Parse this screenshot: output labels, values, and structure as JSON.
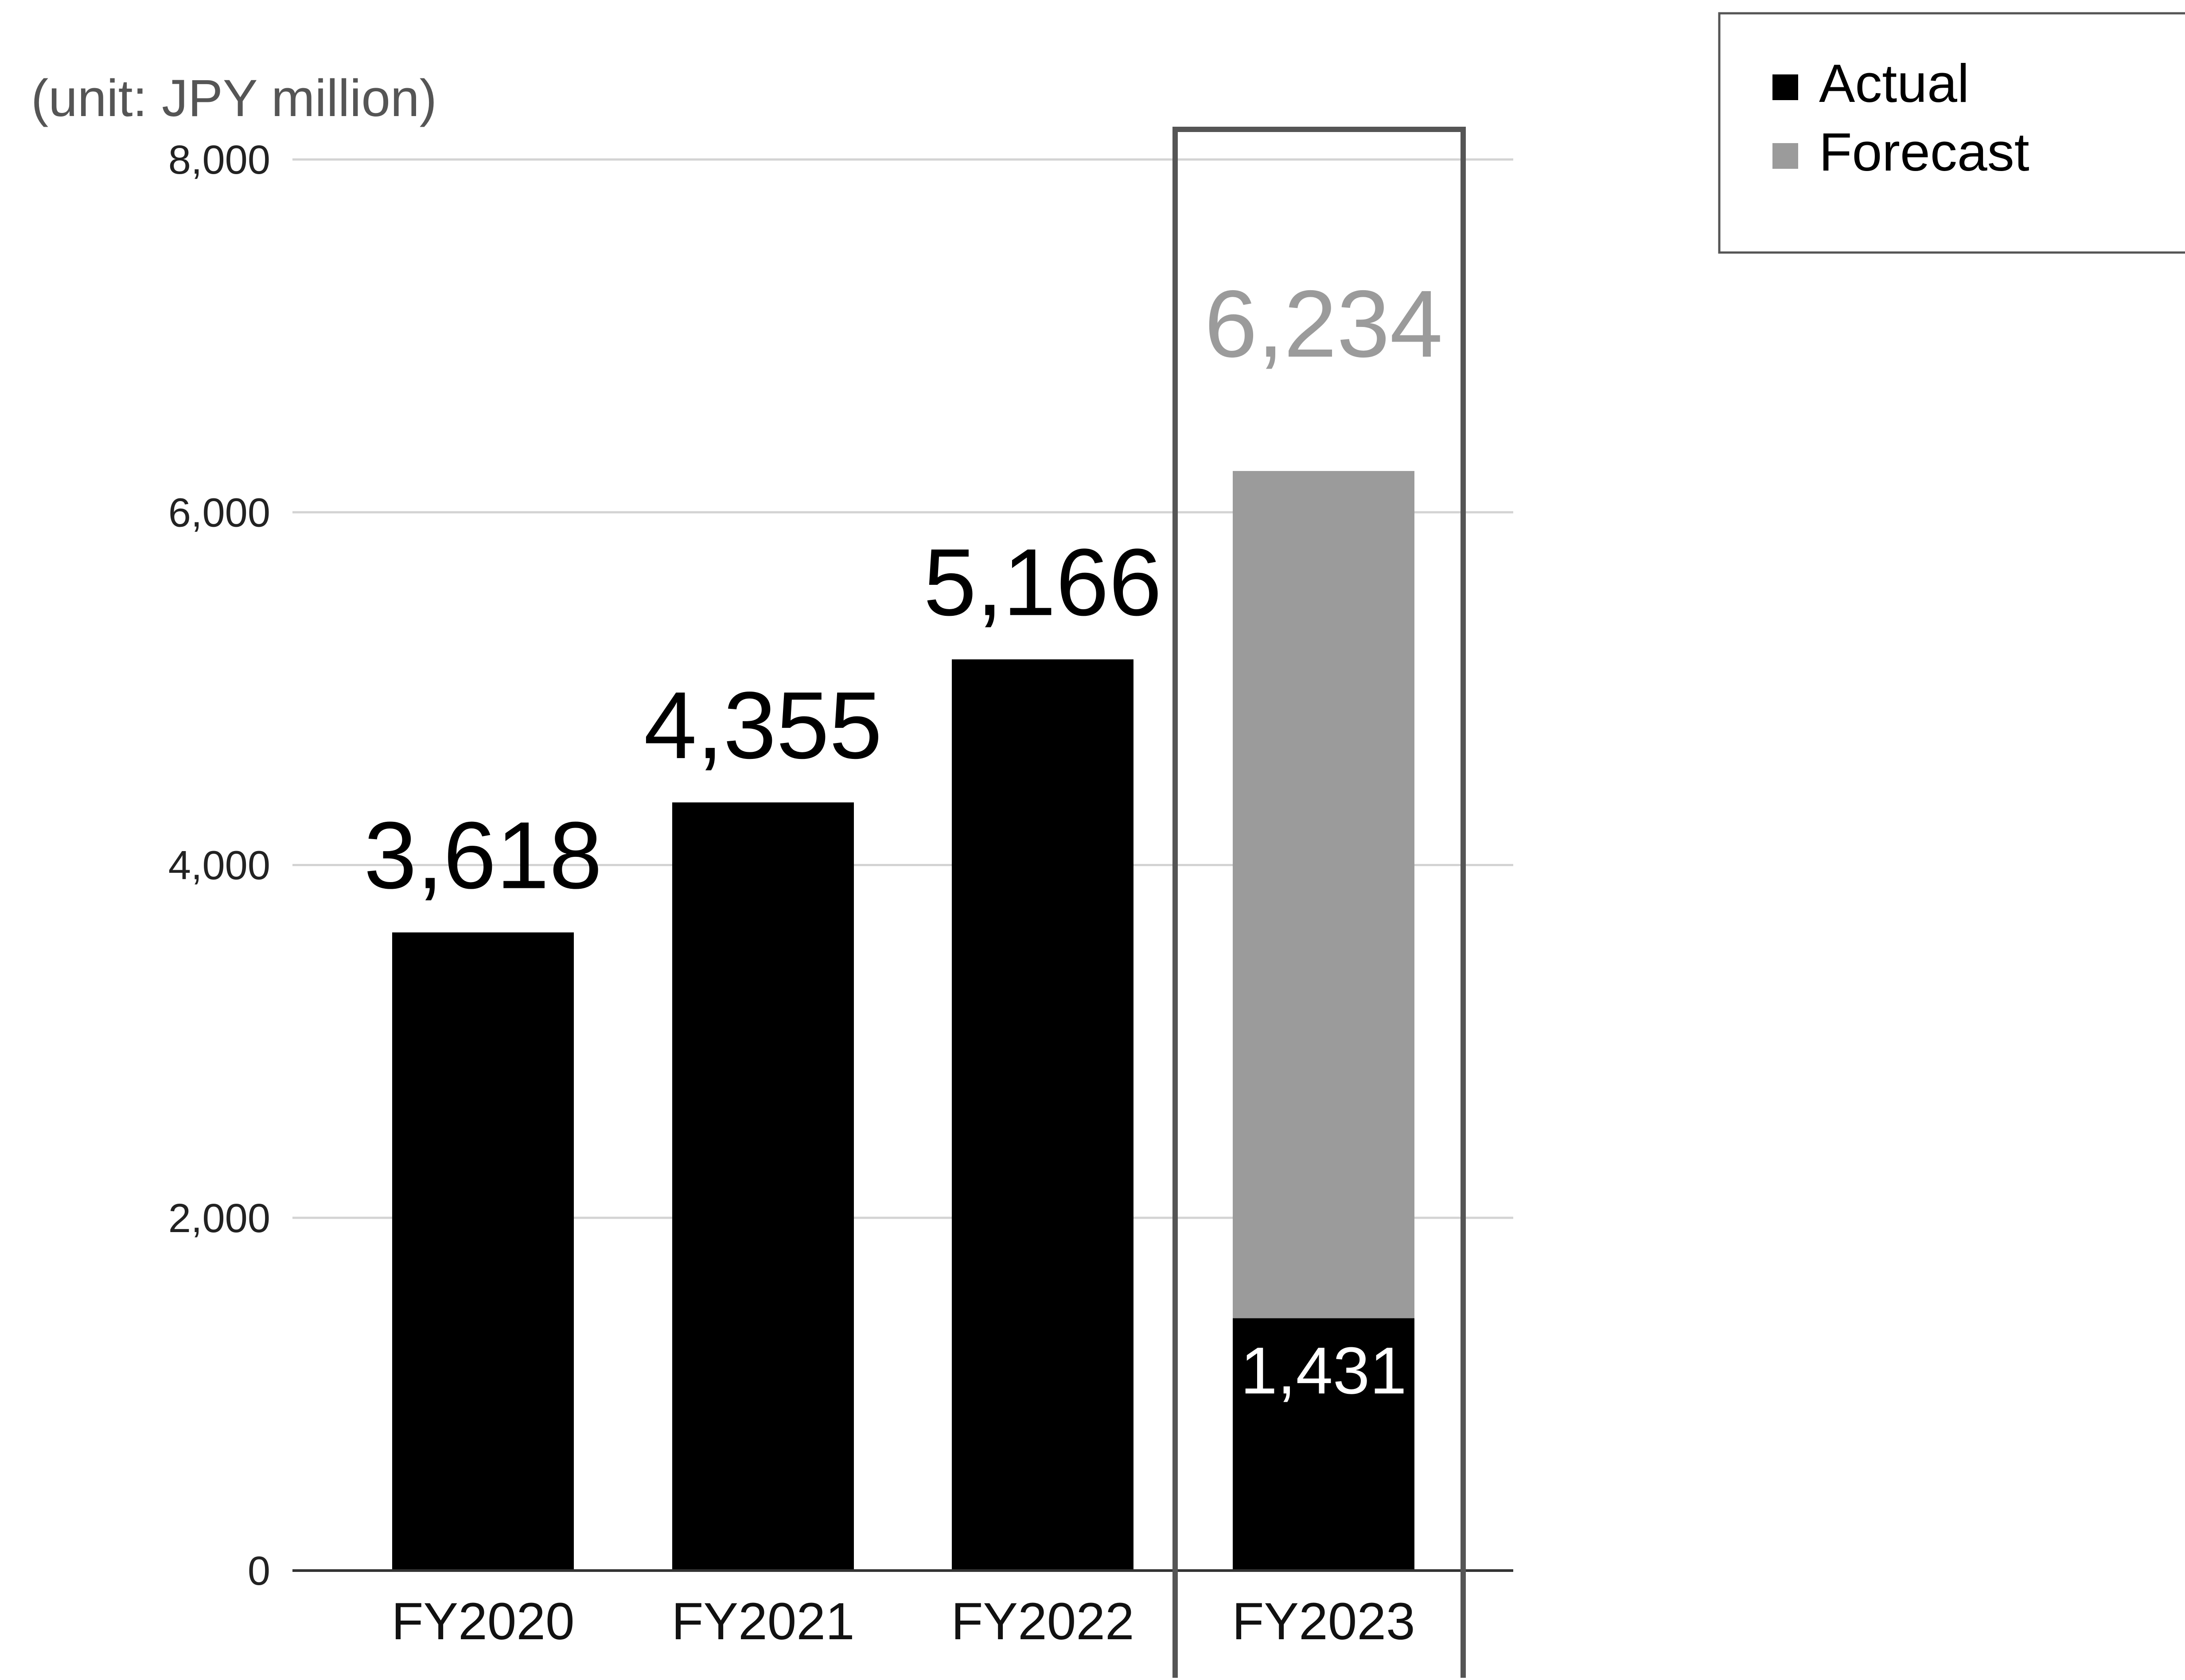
{
  "chart_data": {
    "type": "bar",
    "unit_note": "(unit: JPY million)",
    "categories": [
      "FY2020",
      "FY2021",
      "FY2022",
      "FY2023"
    ],
    "series": [
      {
        "name": "Actual",
        "values": [
          3618,
          4355,
          5166,
          1431
        ]
      },
      {
        "name": "Forecast",
        "values": [
          0,
          0,
          0,
          4803
        ]
      }
    ],
    "data_labels": [
      "3,618",
      "4,355",
      "5,166",
      "6,234"
    ],
    "inner_labels": [
      "",
      "",
      "",
      "1,431"
    ],
    "highlighted_category": "FY2023",
    "ylim": [
      0,
      8000
    ],
    "yticks": [
      0,
      2000,
      4000,
      6000,
      8000
    ],
    "ytick_labels": [
      "0",
      "2,000",
      "4,000",
      "6,000",
      "8,000"
    ],
    "grid": true,
    "legend": {
      "placement": "top-right",
      "entries": [
        {
          "label": "Actual",
          "color": "#000000"
        },
        {
          "label": "Forecast",
          "color": "#9b9b9b"
        }
      ]
    },
    "colors": {
      "actual": "#000000",
      "forecast": "#9b9b9b",
      "forecast_label": "#9b9b9b",
      "grid": "#d3d3d3",
      "highlight_box": "#555555"
    }
  }
}
